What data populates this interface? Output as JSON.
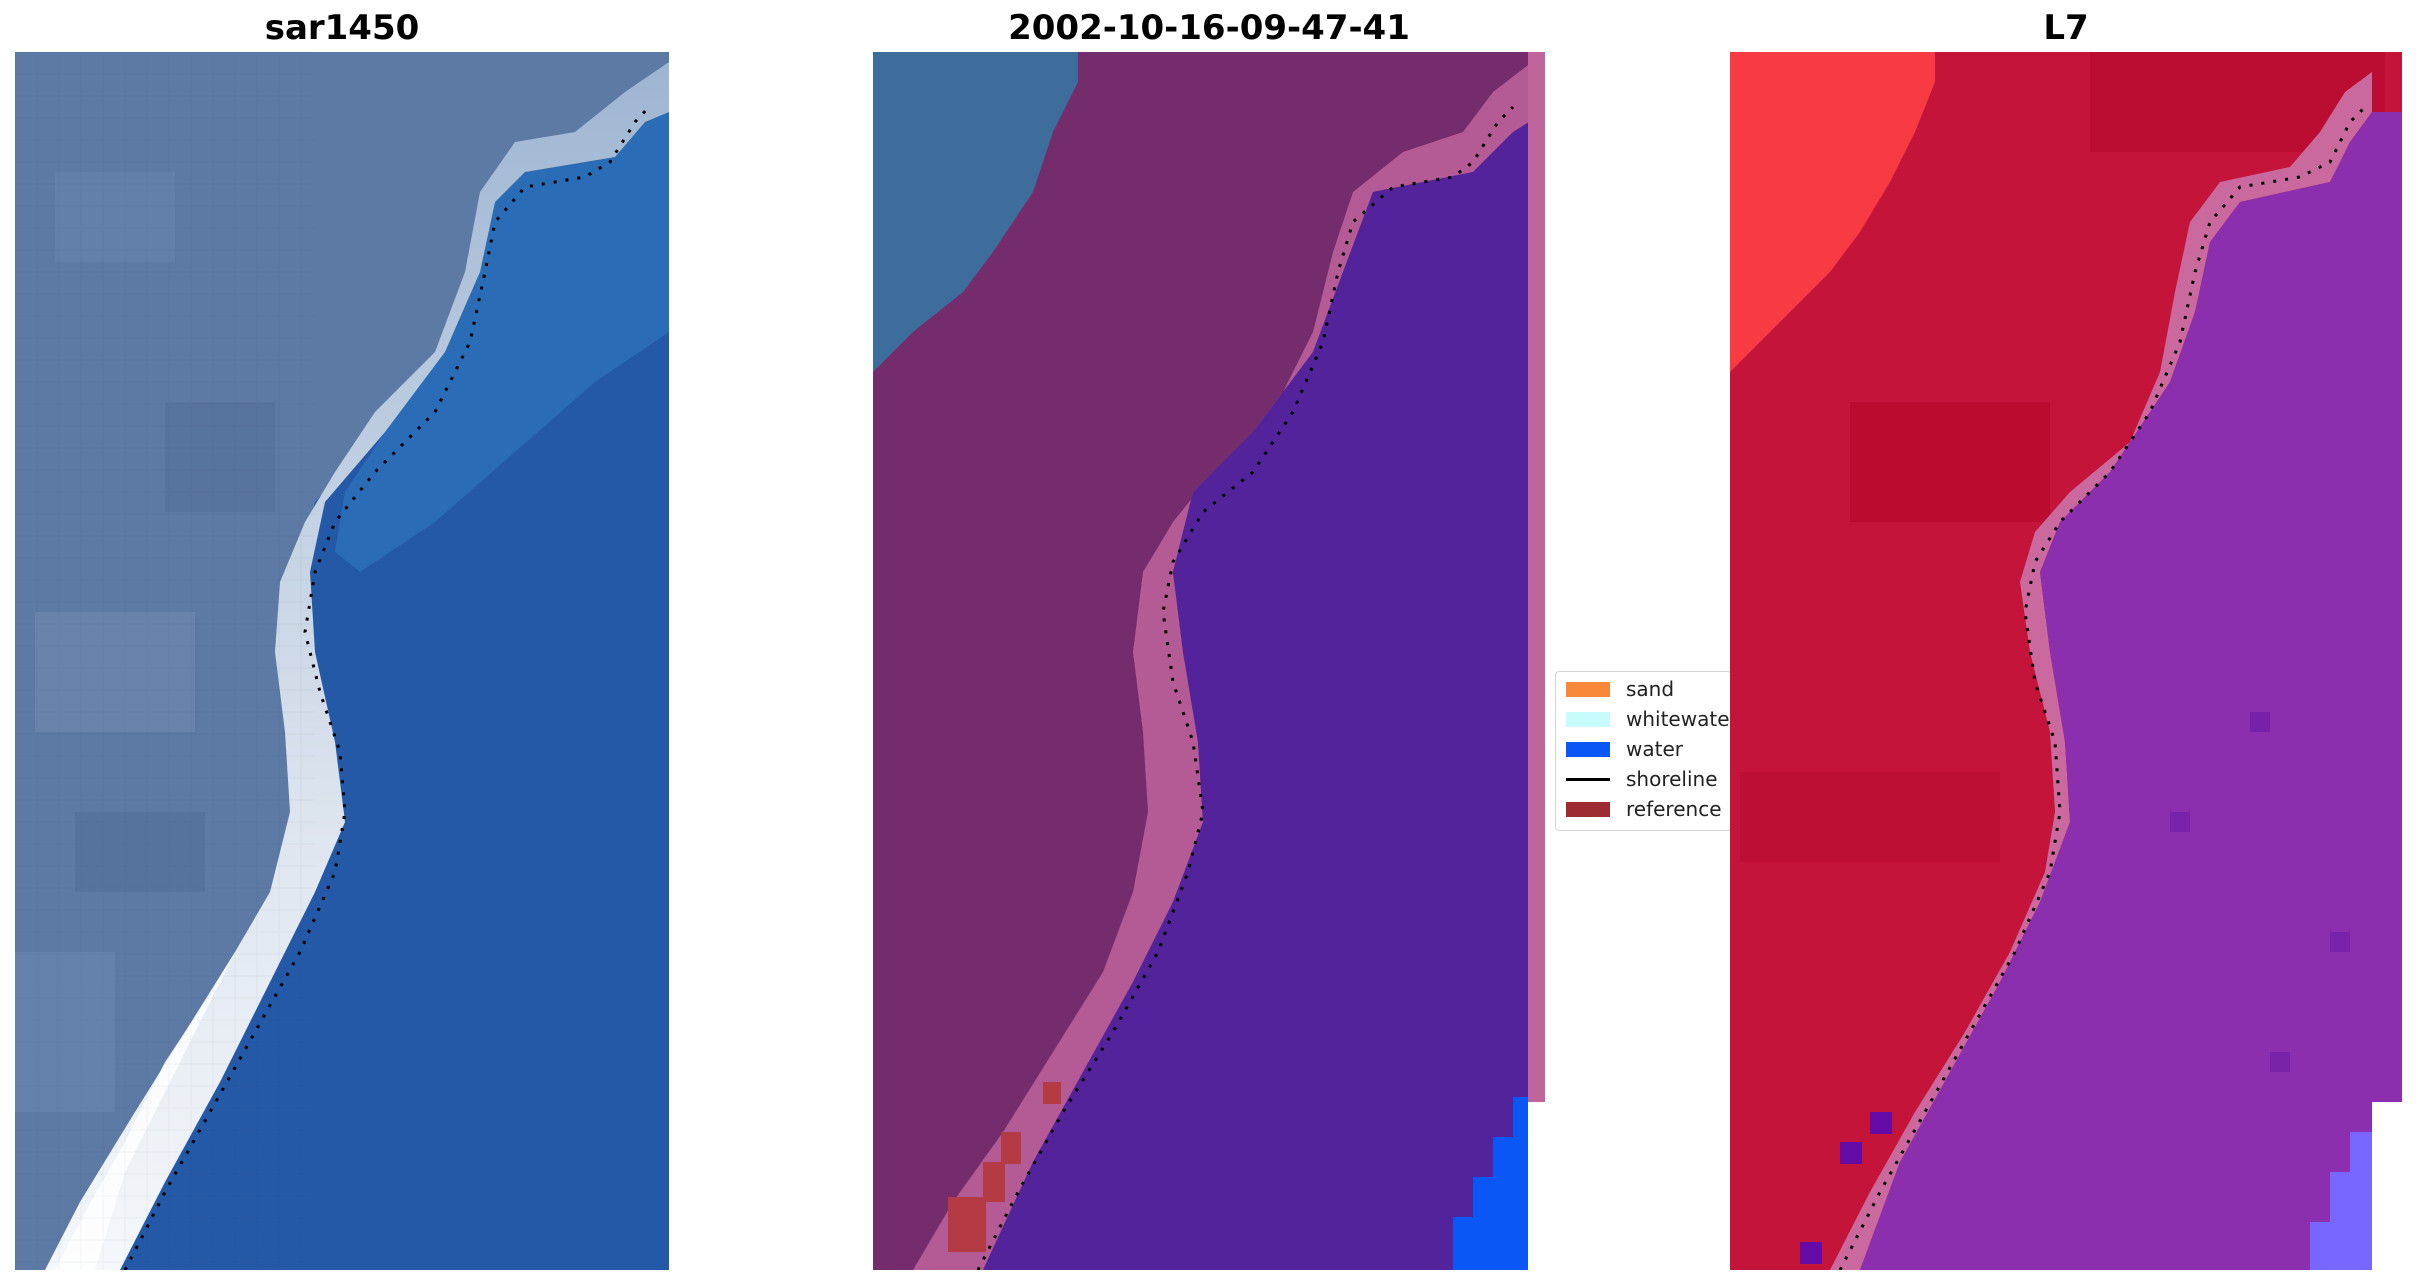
{
  "panels": [
    {
      "title": "sar1450"
    },
    {
      "title": "2002-10-16-09-47-41"
    },
    {
      "title": "L7"
    }
  ],
  "legend": {
    "items": [
      {
        "label": "sand",
        "color": "#f7883a",
        "kind": "patch"
      },
      {
        "label": "whitewater",
        "color": "#c8fbfb",
        "kind": "patch"
      },
      {
        "label": "water",
        "color": "#0a57f5",
        "kind": "patch"
      },
      {
        "label": "shoreline",
        "color": "#000000",
        "kind": "line"
      },
      {
        "label": "reference",
        "color": "#9c2c31",
        "kind": "patch"
      }
    ]
  },
  "colors": {
    "sar_land": "#5c7aa4",
    "sar_water": "#2459a8",
    "sar_beach": "#c9d4e4",
    "classified_land": "#752c6c",
    "classified_water": "#52239a",
    "classified_beach": "#b45a94",
    "classified_topleft": "#3d6d9a",
    "l7_land": "#c41439",
    "l7_water": "#8c2fae",
    "l7_beach": "#c9699e",
    "l7_bright": "#f83b43"
  }
}
